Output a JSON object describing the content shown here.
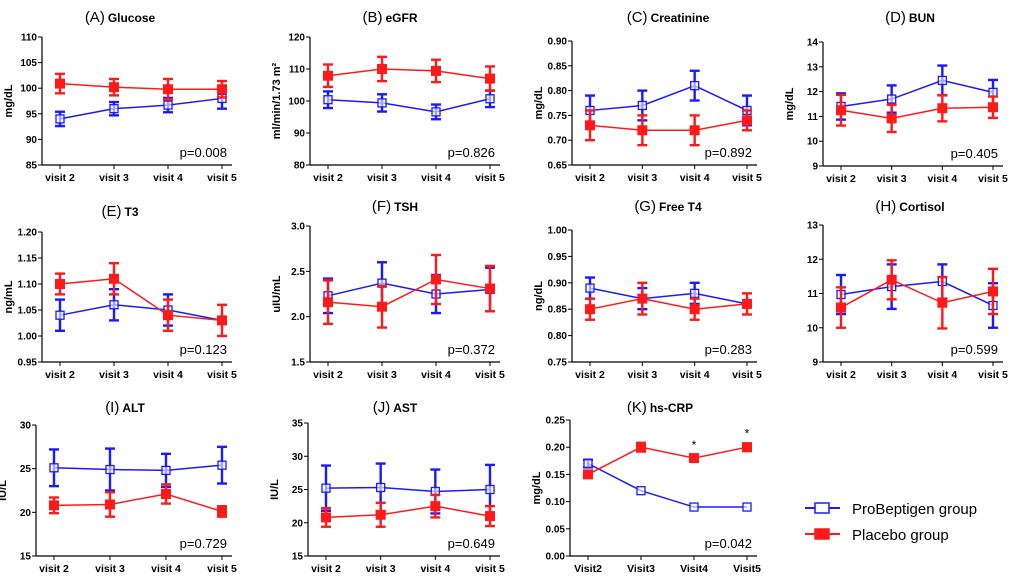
{
  "legend": {
    "position": "bottom-right",
    "entries": [
      {
        "name": "ProBeptigen group",
        "color": "#1a1aff",
        "marker": "open-square"
      },
      {
        "name": "Placebo group",
        "color": "#ff1a1a",
        "marker": "filled-square"
      }
    ]
  },
  "chart_data": [
    {
      "type": "line",
      "panel": "(A)",
      "title": "Glucose",
      "ylabel": "mg/dL",
      "xlabel": "",
      "categories": [
        "visit 2",
        "visit 3",
        "visit 4",
        "visit 5"
      ],
      "ylim": [
        85,
        110
      ],
      "yticks": [
        85,
        90,
        95,
        100,
        105,
        110
      ],
      "ytick_labels": [
        "85",
        "90",
        "95",
        "100",
        "105",
        "110"
      ],
      "pvalue": "p=0.008",
      "series": [
        {
          "name": "ProBeptigen group",
          "values": [
            94.0,
            96.0,
            96.7,
            98.0
          ],
          "errors": [
            1.4,
            1.3,
            1.4,
            2.0
          ]
        },
        {
          "name": "Placebo group",
          "values": [
            100.9,
            100.2,
            99.8,
            99.8
          ],
          "errors": [
            1.9,
            1.6,
            2.0,
            1.6
          ]
        }
      ],
      "annotations": []
    },
    {
      "type": "line",
      "panel": "(B)",
      "title": "eGFR",
      "ylabel": "ml/min/1.73 m²",
      "xlabel": "",
      "categories": [
        "visit 2",
        "visit 3",
        "visit 4",
        "visit 5"
      ],
      "ylim": [
        80,
        120
      ],
      "yticks": [
        80,
        90,
        100,
        110,
        120
      ],
      "ytick_labels": [
        "80",
        "90",
        "100",
        "110",
        "120"
      ],
      "pvalue": "p=0.826",
      "series": [
        {
          "name": "ProBeptigen group",
          "values": [
            100.4,
            99.4,
            96.6,
            100.7
          ],
          "errors": [
            2.6,
            2.7,
            2.3,
            2.6
          ]
        },
        {
          "name": "Placebo group",
          "values": [
            107.9,
            110.0,
            109.4,
            107.0
          ],
          "errors": [
            3.5,
            3.8,
            3.5,
            3.8
          ]
        }
      ],
      "annotations": []
    },
    {
      "type": "line",
      "panel": "(C)",
      "title": "Creatinine",
      "ylabel": "mg/dL",
      "xlabel": "",
      "categories": [
        "visit 2",
        "visit 3",
        "visit 4",
        "visit 5"
      ],
      "ylim": [
        0.65,
        0.9
      ],
      "yticks": [
        0.65,
        0.7,
        0.75,
        0.8,
        0.85,
        0.9
      ],
      "ytick_labels": [
        "0.65",
        "0.70",
        "0.75",
        "0.80",
        "0.85",
        "0.90"
      ],
      "pvalue": "p=0.892",
      "series": [
        {
          "name": "ProBeptigen group",
          "values": [
            0.76,
            0.77,
            0.81,
            0.76
          ],
          "errors": [
            0.03,
            0.03,
            0.03,
            0.03
          ]
        },
        {
          "name": "Placebo group",
          "values": [
            0.73,
            0.72,
            0.72,
            0.74
          ],
          "errors": [
            0.03,
            0.03,
            0.03,
            0.02
          ]
        }
      ],
      "annotations": []
    },
    {
      "type": "line",
      "panel": "(D)",
      "title": "BUN",
      "ylabel": "mg/dL",
      "xlabel": "",
      "categories": [
        "visit 2",
        "visit 3",
        "visit 4",
        "visit 5"
      ],
      "ylim": [
        9,
        14
      ],
      "yticks": [
        9,
        10,
        11,
        12,
        13,
        14
      ],
      "ytick_labels": [
        "9",
        "10",
        "11",
        "12",
        "13",
        "14"
      ],
      "pvalue": "p=0.405",
      "series": [
        {
          "name": "ProBeptigen group",
          "values": [
            11.4,
            11.7,
            12.45,
            11.97
          ],
          "errors": [
            0.53,
            0.55,
            0.6,
            0.5
          ]
        },
        {
          "name": "Placebo group",
          "values": [
            11.25,
            10.92,
            11.33,
            11.37
          ],
          "errors": [
            0.62,
            0.55,
            0.53,
            0.43
          ]
        }
      ],
      "annotations": []
    },
    {
      "type": "line",
      "panel": "(E)",
      "title": "T3",
      "ylabel": "ng/mL",
      "xlabel": "",
      "categories": [
        "visit 2",
        "visit 3",
        "visit 4",
        "visit 5"
      ],
      "ylim": [
        0.95,
        1.2
      ],
      "yticks": [
        0.95,
        1.0,
        1.05,
        1.1,
        1.15,
        1.2
      ],
      "ytick_labels": [
        "0.95",
        "1.00",
        "1.05",
        "1.10",
        "1.15",
        "1.20"
      ],
      "pvalue": "p=0.123",
      "series": [
        {
          "name": "ProBeptigen group",
          "values": [
            1.04,
            1.06,
            1.05,
            1.03
          ],
          "errors": [
            0.03,
            0.03,
            0.03,
            0.0
          ]
        },
        {
          "name": "Placebo group",
          "values": [
            1.1,
            1.11,
            1.04,
            1.03
          ],
          "errors": [
            0.02,
            0.03,
            0.03,
            0.03
          ]
        }
      ],
      "annotations": []
    },
    {
      "type": "line",
      "panel": "(F)",
      "title": "TSH",
      "ylabel": "uIU/mL",
      "xlabel": "",
      "categories": [
        "visit 2",
        "visit 3",
        "visit 4",
        "visit 5"
      ],
      "ylim": [
        1.5,
        3.0
      ],
      "yticks": [
        1.5,
        2.0,
        2.5,
        3.0
      ],
      "ytick_labels": [
        "1.5",
        "2.0",
        "2.5",
        "3.0"
      ],
      "pvalue": "p=0.372",
      "series": [
        {
          "name": "ProBeptigen group",
          "values": [
            2.23,
            2.37,
            2.25,
            2.3
          ],
          "errors": [
            0.19,
            0.23,
            0.21,
            0.24
          ]
        },
        {
          "name": "Placebo group",
          "values": [
            2.16,
            2.11,
            2.41,
            2.31
          ],
          "errors": [
            0.24,
            0.23,
            0.27,
            0.25
          ]
        }
      ],
      "annotations": []
    },
    {
      "type": "line",
      "panel": "(G)",
      "title": "Free T4",
      "ylabel": "ng/dL",
      "xlabel": "",
      "categories": [
        "visit 2",
        "visit 3",
        "visit 4",
        "visit 5"
      ],
      "ylim": [
        0.75,
        1.0
      ],
      "yticks": [
        0.75,
        0.8,
        0.85,
        0.9,
        0.95,
        1.0
      ],
      "ytick_labels": [
        "0.75",
        "0.80",
        "0.85",
        "0.90",
        "0.95",
        "1.00"
      ],
      "pvalue": "p=0.283",
      "series": [
        {
          "name": "ProBeptigen group",
          "values": [
            0.89,
            0.87,
            0.88,
            0.86
          ],
          "errors": [
            0.02,
            0.02,
            0.02,
            0.0
          ]
        },
        {
          "name": "Placebo group",
          "values": [
            0.85,
            0.87,
            0.85,
            0.86
          ],
          "errors": [
            0.02,
            0.03,
            0.02,
            0.02
          ]
        }
      ],
      "annotations": []
    },
    {
      "type": "line",
      "panel": "(H)",
      "title": "Cortisol",
      "ylabel": "",
      "xlabel": "",
      "categories": [
        "visit 2",
        "visit 3",
        "visit 4",
        "visit 5"
      ],
      "ylim": [
        9,
        13
      ],
      "yticks": [
        9,
        10,
        11,
        12,
        13
      ],
      "ytick_labels": [
        "9",
        "10",
        "11",
        "12",
        "13"
      ],
      "pvalue": "p=0.599",
      "series": [
        {
          "name": "ProBeptigen group",
          "values": [
            10.97,
            11.2,
            11.35,
            10.65
          ],
          "errors": [
            0.57,
            0.65,
            0.5,
            0.65
          ]
        },
        {
          "name": "Placebo group",
          "values": [
            10.59,
            11.4,
            10.73,
            11.06
          ],
          "errors": [
            0.59,
            0.57,
            0.75,
            0.66
          ]
        }
      ],
      "annotations": []
    },
    {
      "type": "line",
      "panel": "(I)",
      "title": "ALT",
      "ylabel": "IU/L",
      "xlabel": "",
      "categories": [
        "visit 2",
        "visit 3",
        "visit 4",
        "visit 5"
      ],
      "ylim": [
        15,
        30
      ],
      "yticks": [
        15,
        20,
        25,
        30
      ],
      "ytick_labels": [
        "15",
        "20",
        "25",
        "30"
      ],
      "pvalue": "p=0.729",
      "series": [
        {
          "name": "ProBeptigen group",
          "values": [
            25.1,
            24.9,
            24.8,
            25.4
          ],
          "errors": [
            2.1,
            2.4,
            1.9,
            2.1
          ]
        },
        {
          "name": "Placebo group",
          "values": [
            20.8,
            20.9,
            22.1,
            20.1
          ],
          "errors": [
            0.9,
            1.4,
            1.1,
            0.6
          ]
        }
      ],
      "annotations": []
    },
    {
      "type": "line",
      "panel": "(J)",
      "title": "AST",
      "ylabel": "IU/L",
      "xlabel": "",
      "categories": [
        "visit 2",
        "visit 3",
        "visit 4",
        "visit 5"
      ],
      "ylim": [
        15,
        35
      ],
      "yticks": [
        15,
        20,
        25,
        30,
        35
      ],
      "ytick_labels": [
        "15",
        "20",
        "25",
        "30",
        "35"
      ],
      "pvalue": "p=0.649",
      "series": [
        {
          "name": "ProBeptigen group",
          "values": [
            25.2,
            25.3,
            24.7,
            25.0
          ],
          "errors": [
            3.4,
            3.6,
            3.3,
            3.7
          ]
        },
        {
          "name": "Placebo group",
          "values": [
            20.8,
            21.2,
            22.5,
            21.0
          ],
          "errors": [
            1.4,
            1.8,
            1.7,
            1.5
          ]
        }
      ],
      "annotations": []
    },
    {
      "type": "line",
      "panel": "(K)",
      "title": "hs-CRP",
      "ylabel": "mg/dL",
      "xlabel": "",
      "categories": [
        "Visit2",
        "Visit3",
        "Visit4",
        "Visit5"
      ],
      "ylim": [
        0.0,
        0.25
      ],
      "yticks": [
        0.0,
        0.05,
        0.1,
        0.15,
        0.2,
        0.25
      ],
      "ytick_labels": [
        "0.00",
        "0.05",
        "0.10",
        "0.15",
        "0.20",
        "0.25"
      ],
      "pvalue": "p=0.042",
      "series": [
        {
          "name": "ProBeptigen group",
          "values": [
            0.17,
            0.12,
            0.09,
            0.09
          ],
          "errors": [
            0.007,
            0.0,
            0.0,
            0.0
          ]
        },
        {
          "name": "Placebo group",
          "values": [
            0.15,
            0.2,
            0.18,
            0.2
          ],
          "errors": [
            0.004,
            0.008,
            0.006,
            0.007
          ]
        }
      ],
      "annotations": [
        {
          "text": "*",
          "category": "Visit4"
        },
        {
          "text": "*",
          "category": "Visit5"
        }
      ]
    }
  ]
}
